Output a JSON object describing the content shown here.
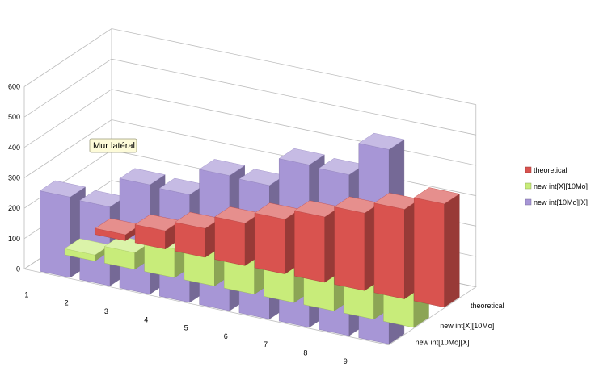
{
  "chart_data": {
    "type": "bar",
    "subtype": "3d-column",
    "categories": [
      "1",
      "2",
      "3",
      "4",
      "5",
      "6",
      "7",
      "8",
      "9"
    ],
    "series": [
      {
        "name": "theoretical",
        "color": "#d9534f",
        "values": [
          20,
          60,
          95,
          140,
          180,
          215,
          255,
          295,
          340
        ]
      },
      {
        "name": "new int[X][10Mo]",
        "color": "#c8ec7a",
        "values": [
          20,
          55,
          95,
          135,
          170,
          210,
          250,
          285,
          325
        ]
      },
      {
        "name": "new int[10Mo][X]",
        "color": "#a796d6",
        "values": [
          265,
          260,
          360,
          355,
          445,
          440,
          535,
          530,
          640
        ]
      }
    ],
    "ylim": [
      0,
      600
    ],
    "yticks": [
      "0",
      "100",
      "200",
      "300",
      "400",
      "500",
      "600"
    ],
    "depth_labels": [
      "theoretical",
      "new int[X][10Mo]",
      "new int[10Mo][X]"
    ],
    "grid": true,
    "legend_position": "right"
  },
  "tooltip": {
    "label": "Mur latéral"
  },
  "colors": {
    "grid": "#bdbdbd",
    "tooltip_bg": "#fdfbd8",
    "tooltip_border": "#9a9a7a"
  }
}
